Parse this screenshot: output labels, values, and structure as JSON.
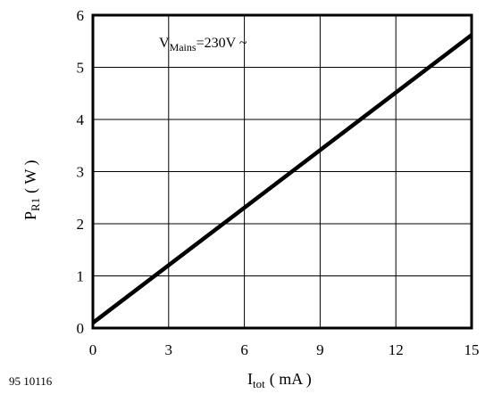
{
  "chart_data": {
    "type": "line",
    "xlabel": {
      "main": "I",
      "sub": "tot",
      "unit": "( mA )"
    },
    "ylabel": {
      "main": "P",
      "sub": "R1",
      "unit": "( W )"
    },
    "xlim": [
      0,
      15
    ],
    "ylim": [
      0,
      6
    ],
    "xticks": [
      0,
      3,
      6,
      9,
      12,
      15
    ],
    "yticks": [
      0,
      1,
      2,
      3,
      4,
      5,
      6
    ],
    "grid": true,
    "series": [
      {
        "x": [
          0,
          15
        ],
        "y": [
          0.1,
          5.62
        ],
        "color": "#000000"
      }
    ],
    "annotation": {
      "main": "V",
      "sub": "Mains",
      "rest": "=230V ~"
    }
  },
  "figure_code": "95 10116"
}
